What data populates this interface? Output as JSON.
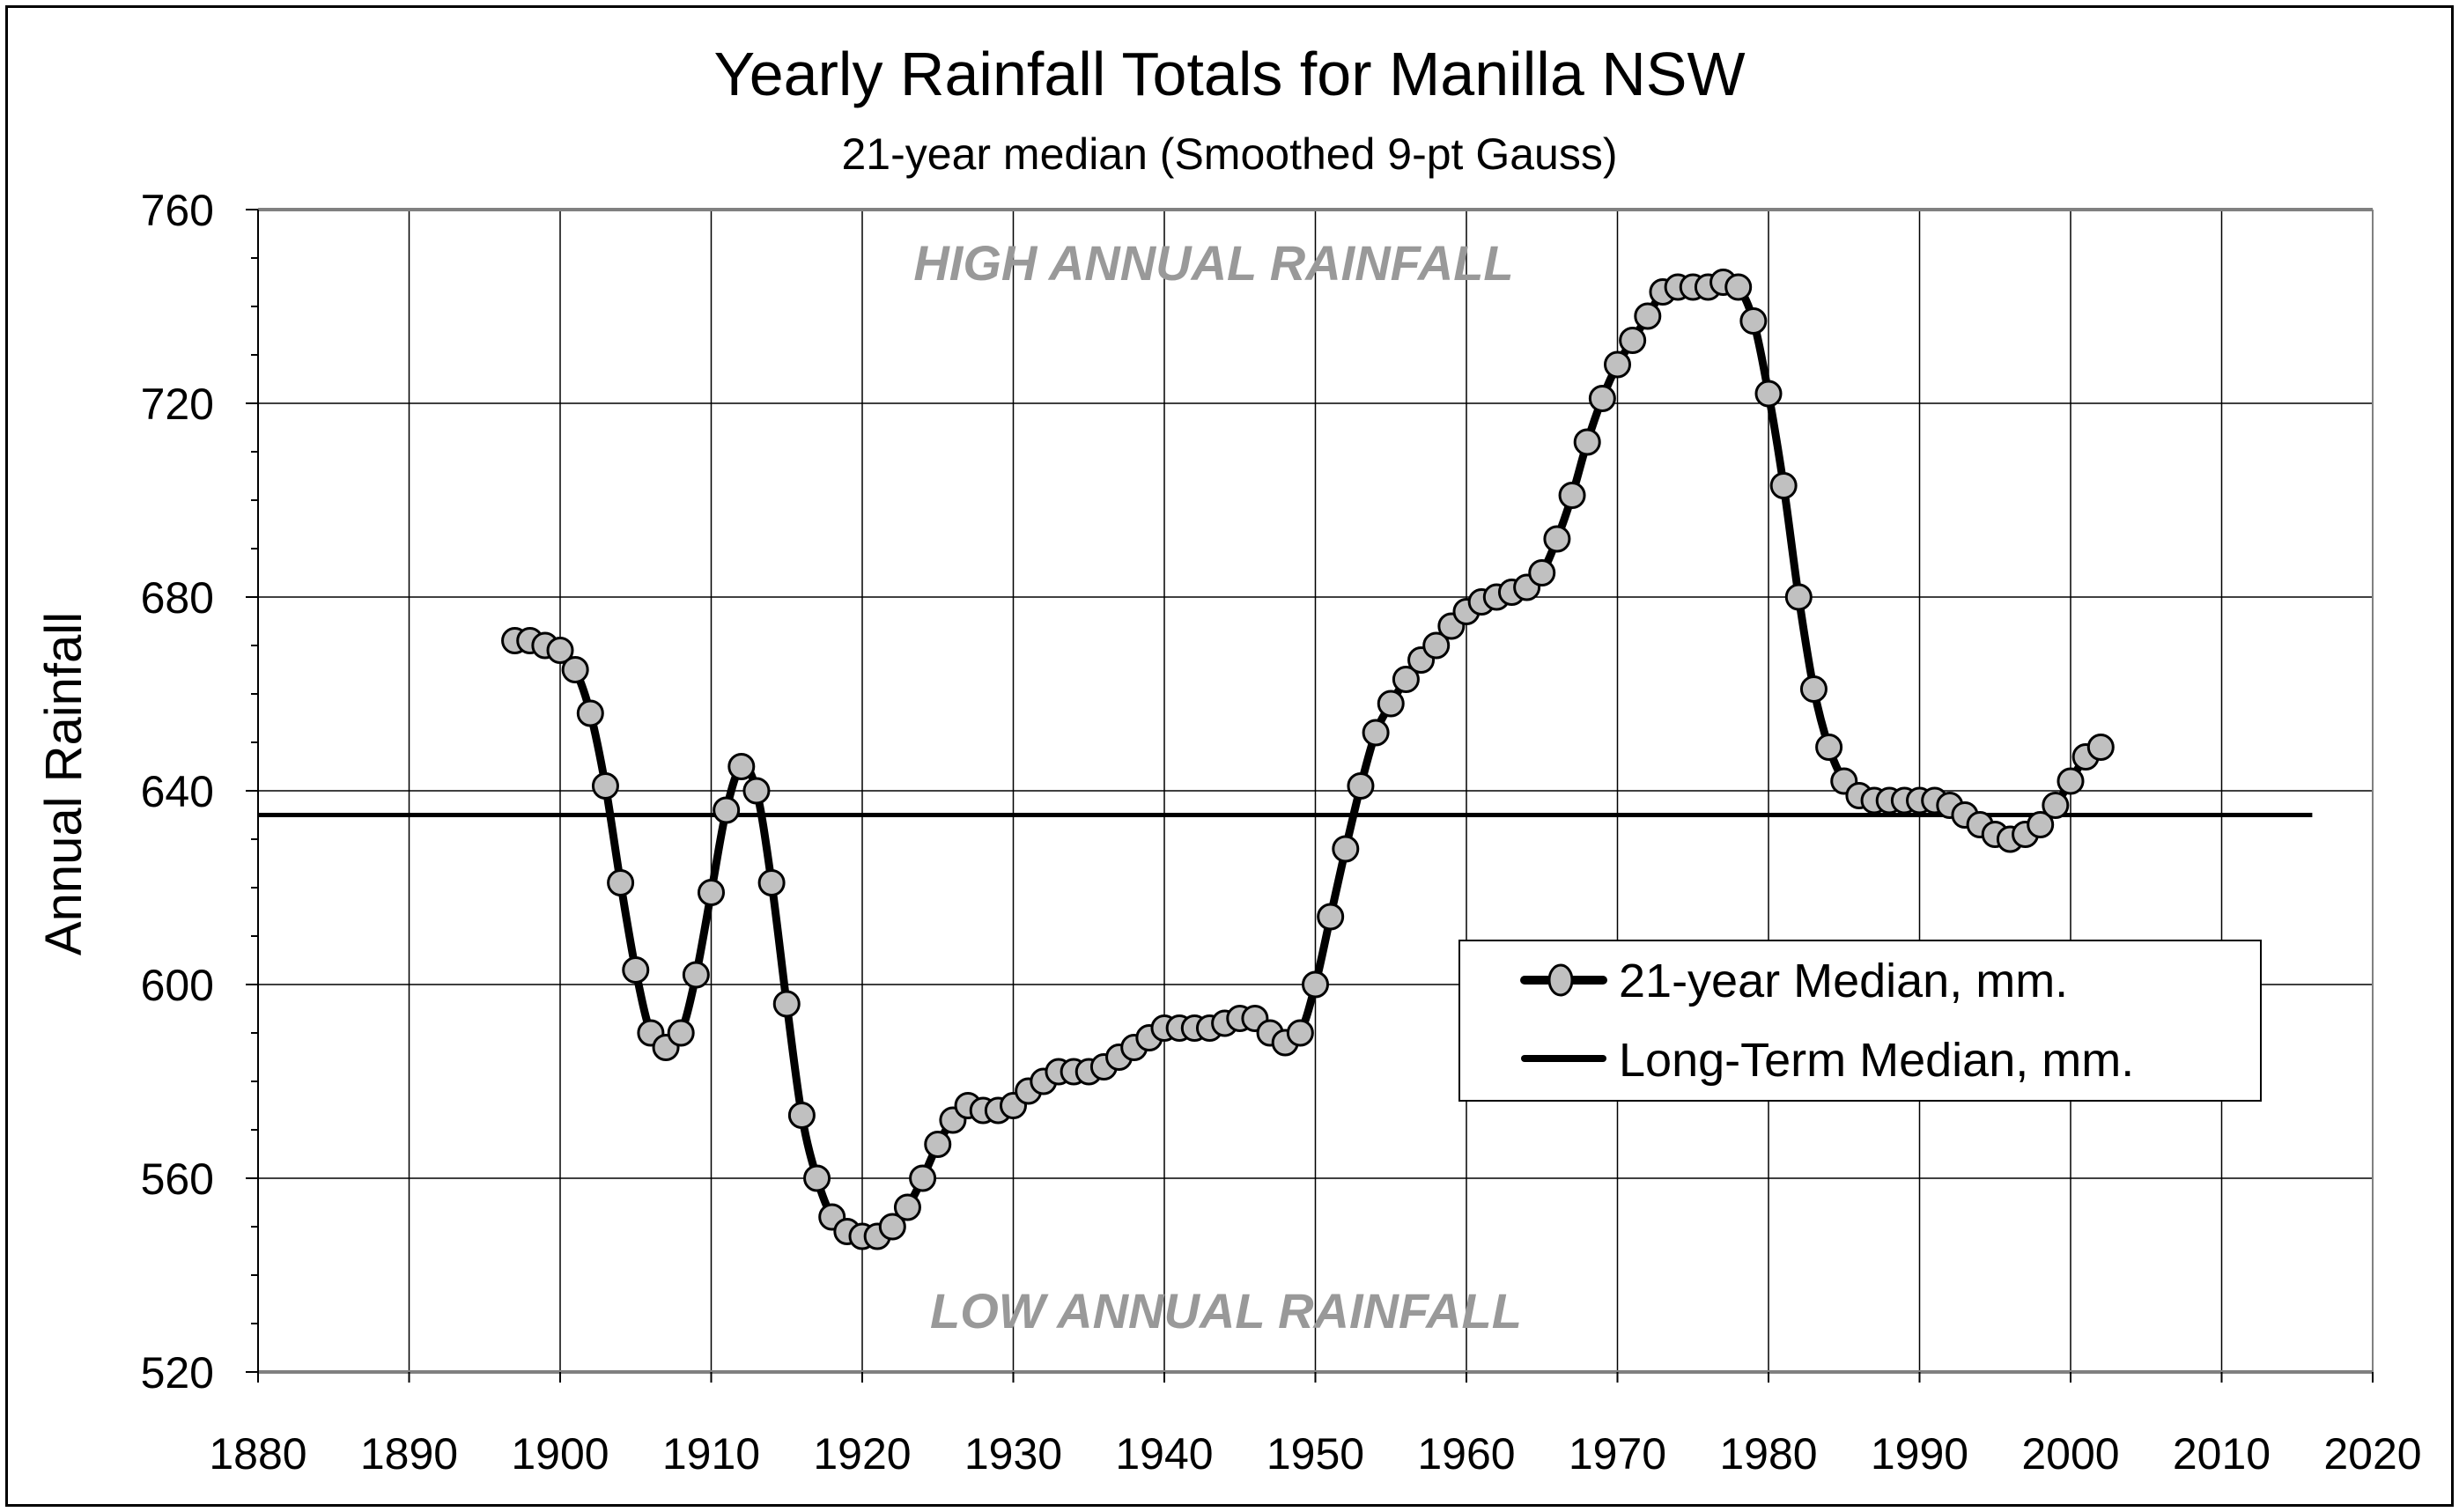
{
  "chart_data": {
    "type": "line",
    "title": "Yearly Rainfall Totals for Manilla NSW",
    "subtitle": "21-year median (Smoothed 9-pt Gauss)",
    "xlabel": "",
    "ylabel": "Annual Rainfall",
    "xlim": [
      1880,
      2020
    ],
    "ylim": [
      520,
      760
    ],
    "x_ticks": [
      "1880",
      "1890",
      "1900",
      "1910",
      "1920",
      "1930",
      "1940",
      "1950",
      "1960",
      "1970",
      "1980",
      "1990",
      "2000",
      "2010",
      "2020"
    ],
    "y_ticks": [
      "520",
      "560",
      "600",
      "640",
      "680",
      "720",
      "760"
    ],
    "grid": true,
    "legend_position": "center-right",
    "annotations": [
      "HIGH ANNUAL RAINFALL",
      "LOW ANNUAL RAINFALL"
    ],
    "series": [
      {
        "name": "21-year Median, mm.",
        "color": "#000000",
        "marker_fill": "#c0c0c0",
        "x": [
          1897,
          1898,
          1899,
          1900,
          1901,
          1902,
          1903,
          1904,
          1905,
          1906,
          1907,
          1908,
          1909,
          1910,
          1911,
          1912,
          1913,
          1914,
          1915,
          1916,
          1917,
          1918,
          1919,
          1920,
          1921,
          1922,
          1923,
          1924,
          1925,
          1926,
          1927,
          1928,
          1929,
          1930,
          1931,
          1932,
          1933,
          1934,
          1935,
          1936,
          1937,
          1938,
          1939,
          1940,
          1941,
          1942,
          1943,
          1944,
          1945,
          1946,
          1947,
          1948,
          1949,
          1950,
          1951,
          1952,
          1953,
          1954,
          1955,
          1956,
          1957,
          1958,
          1959,
          1960,
          1961,
          1962,
          1963,
          1964,
          1965,
          1966,
          1967,
          1968,
          1969,
          1970,
          1971,
          1972,
          1973,
          1974,
          1975,
          1976,
          1977,
          1978,
          1979,
          1980,
          1981,
          1982,
          1983,
          1984,
          1985,
          1986,
          1987,
          1988,
          1989,
          1990,
          1991,
          1992,
          1993,
          1994,
          1995,
          1996,
          1997,
          1998,
          1999,
          2000,
          2001,
          2002
        ],
        "values": [
          671,
          671,
          670,
          669,
          665,
          656,
          641,
          621,
          603,
          590,
          587,
          590,
          602,
          619,
          636,
          645,
          640,
          621,
          596,
          573,
          560,
          552,
          549,
          548,
          548,
          550,
          554,
          560,
          567,
          572,
          575,
          574,
          574,
          575,
          578,
          580,
          582,
          582,
          582,
          583,
          585,
          587,
          589,
          591,
          591,
          591,
          591,
          592,
          593,
          593,
          590,
          588,
          590,
          600,
          614,
          628,
          641,
          652,
          658,
          663,
          667,
          670,
          674,
          677,
          679,
          680,
          681,
          682,
          685,
          692,
          701,
          712,
          721,
          728,
          733,
          738,
          743,
          744,
          744,
          744,
          745,
          744,
          737,
          722,
          703,
          680,
          661,
          649,
          642,
          639,
          638,
          638,
          638,
          638,
          638,
          637,
          635,
          633,
          631,
          630,
          631,
          633,
          637,
          642,
          647,
          649
        ]
      },
      {
        "name": "Long-Term Median, mm.",
        "color": "#000000",
        "x": [
          1880,
          2016
        ],
        "values": [
          635,
          635
        ]
      }
    ]
  }
}
